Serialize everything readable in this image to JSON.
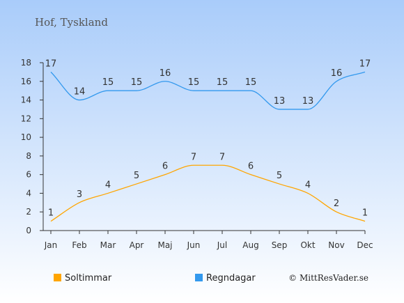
{
  "chart_data": {
    "type": "line",
    "title": "Hof, Tyskland",
    "categories": [
      "Jan",
      "Feb",
      "Mar",
      "Apr",
      "Maj",
      "Jun",
      "Jul",
      "Aug",
      "Sep",
      "Okt",
      "Nov",
      "Dec"
    ],
    "series": [
      {
        "name": "Soltimmar",
        "color": "#FFA500",
        "values": [
          1,
          3,
          4,
          5,
          6,
          7,
          7,
          6,
          5,
          4,
          2,
          1
        ]
      },
      {
        "name": "Regndagar",
        "color": "#3399EE",
        "values": [
          17,
          14,
          15,
          15,
          16,
          15,
          15,
          15,
          13,
          13,
          16,
          17
        ]
      }
    ],
    "y_ticks": [
      0,
      2,
      4,
      6,
      8,
      10,
      12,
      14,
      16,
      18
    ],
    "ylim": [
      0,
      18
    ],
    "grid": false,
    "legend_position": "bottom-left",
    "credit": "© MittResVader.se",
    "background": {
      "top": "#A9CCFA",
      "bottom": "#FFFFFF"
    }
  }
}
